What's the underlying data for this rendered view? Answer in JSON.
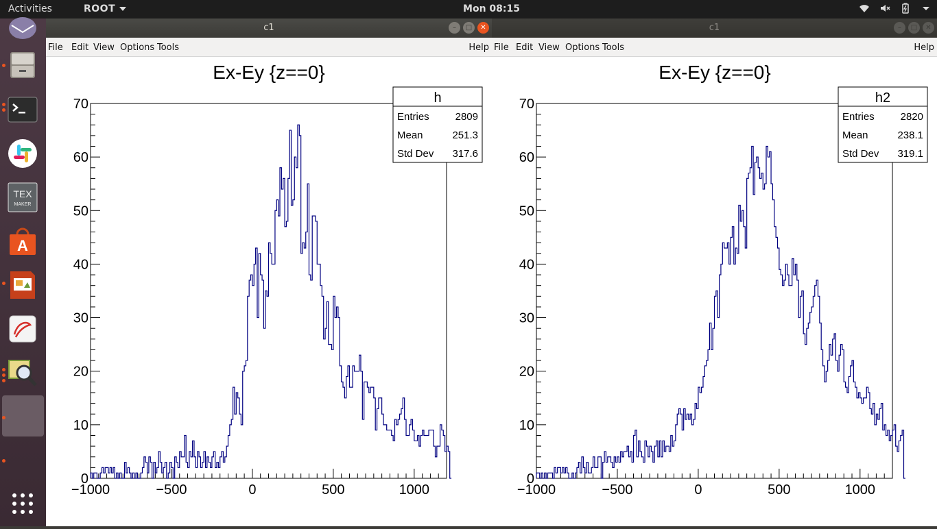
{
  "topbar": {
    "activities": "Activities",
    "app_menu": "ROOT",
    "clock": "Mon 08:15"
  },
  "dock": {
    "items": [
      "mail",
      "files",
      "terminal",
      "slack",
      "texmaker",
      "software-center",
      "impress",
      "evince",
      "image-viewer",
      "blank"
    ],
    "show_apps": "show-applications"
  },
  "windows": [
    {
      "title": "c1",
      "menu": {
        "file": "File",
        "edit": "Edit",
        "view": "View",
        "options": "Options",
        "tools": "Tools",
        "help": "Help"
      },
      "plot_title": "Ex-Ey {z==0}",
      "stats": {
        "name": "h",
        "entries_label": "Entries",
        "entries": "2809",
        "mean_label": "Mean",
        "mean": "251.3",
        "std_label": "Std Dev",
        "std": "317.6"
      }
    },
    {
      "title": "c1",
      "menu": {
        "file": "File",
        "edit": "Edit",
        "view": "View",
        "options": "Options",
        "tools": "Tools",
        "help": "Help"
      },
      "plot_title": "Ex-Ey {z==0}",
      "stats": {
        "name": "h2",
        "entries_label": "Entries",
        "entries": "2820",
        "mean_label": "Mean",
        "mean": "238.1",
        "std_label": "Std Dev",
        "std": "319.1"
      }
    }
  ],
  "colors": {
    "histogram_line": "#000080",
    "accent": "#e95420"
  },
  "chart_data": [
    {
      "type": "bar",
      "title": "Ex-Ey {z==0}",
      "xlim": [
        -1000,
        1200
      ],
      "ylim": [
        0,
        70
      ],
      "xticks": [
        "-1000",
        "-500",
        "0",
        "500",
        "1000"
      ],
      "yticks": [
        "0",
        "10",
        "20",
        "30",
        "40",
        "50",
        "60",
        "70"
      ],
      "bin_start": -1000,
      "bin_width": 10,
      "values": [
        1,
        0,
        1,
        1,
        0,
        0,
        1,
        2,
        1,
        2,
        2,
        1,
        2,
        1,
        2,
        0,
        1,
        0,
        1,
        0,
        0,
        3,
        1,
        2,
        1,
        0,
        1,
        0,
        1,
        0,
        0,
        1,
        2,
        4,
        3,
        1,
        4,
        3,
        0,
        3,
        1,
        2,
        5,
        3,
        1,
        2,
        3,
        0,
        1,
        3,
        2,
        0,
        4,
        3,
        2,
        5,
        4,
        4,
        8,
        3,
        2,
        5,
        4,
        7,
        4,
        2,
        5,
        4,
        2,
        3,
        5,
        2,
        4,
        3,
        2,
        4,
        5,
        2,
        3,
        2,
        4,
        5,
        3,
        4,
        6,
        8,
        10,
        11,
        17,
        12,
        16,
        15,
        12,
        10,
        20,
        21,
        22,
        34,
        37,
        38,
        36,
        40,
        43,
        30,
        42,
        38,
        37,
        28,
        35,
        34,
        44,
        42,
        40,
        40,
        50,
        52,
        49,
        58,
        54,
        56,
        47,
        48,
        56,
        65,
        51,
        52,
        60,
        58,
        66,
        64,
        42,
        44,
        43,
        46,
        55,
        38,
        37,
        49,
        49,
        48,
        40,
        40,
        36,
        34,
        26,
        28,
        33,
        25,
        25,
        24,
        34,
        30,
        32,
        30,
        21,
        18,
        17,
        15,
        19,
        21,
        17,
        17,
        21,
        20,
        20,
        20,
        23,
        20,
        11,
        18,
        18,
        17,
        16,
        17,
        17,
        15,
        9,
        13,
        15,
        15,
        12,
        10,
        10,
        9,
        9,
        9,
        8,
        7,
        11,
        10,
        11,
        12,
        13,
        15,
        11,
        8,
        8,
        10,
        11,
        9,
        7,
        7,
        8,
        6,
        8,
        9,
        8,
        8,
        8,
        9,
        9,
        9,
        6,
        4,
        6,
        6,
        10,
        9,
        8,
        5,
        6,
        5,
        0
      ]
    },
    {
      "type": "bar",
      "title": "Ex-Ey {z==0}",
      "xlim": [
        -1000,
        1200
      ],
      "ylim": [
        0,
        70
      ],
      "xticks": [
        "-1000",
        "-500",
        "0",
        "500",
        "1000"
      ],
      "yticks": [
        "0",
        "10",
        "20",
        "30",
        "40",
        "50",
        "60",
        "70"
      ],
      "bin_start": -1000,
      "bin_width": 10,
      "values": [
        1,
        1,
        0,
        1,
        0,
        1,
        0,
        1,
        1,
        1,
        0,
        2,
        1,
        2,
        2,
        1,
        2,
        1,
        2,
        1,
        0,
        0,
        1,
        0,
        1,
        2,
        3,
        1,
        4,
        2,
        1,
        3,
        1,
        1,
        2,
        4,
        2,
        2,
        4,
        4,
        0,
        3,
        5,
        3,
        4,
        4,
        3,
        2,
        4,
        3,
        4,
        3,
        5,
        4,
        5,
        5,
        6,
        4,
        5,
        3,
        8,
        9,
        4,
        7,
        5,
        4,
        3,
        7,
        6,
        4,
        6,
        5,
        3,
        6,
        7,
        4,
        7,
        4,
        7,
        5,
        6,
        6,
        5,
        8,
        6,
        7,
        10,
        12,
        13,
        12,
        9,
        13,
        11,
        12,
        11,
        12,
        10,
        11,
        14,
        13,
        17,
        16,
        17,
        19,
        21,
        22,
        24,
        29,
        24,
        28,
        34,
        35,
        30,
        38,
        40,
        44,
        43,
        43,
        44,
        40,
        45,
        47,
        40,
        43,
        42,
        51,
        48,
        50,
        47,
        43,
        56,
        57,
        58,
        62,
        53,
        59,
        60,
        58,
        56,
        57,
        54,
        55,
        62,
        60,
        61,
        55,
        52,
        47,
        45,
        43,
        39,
        38,
        36,
        37,
        40,
        38,
        36,
        36,
        41,
        38,
        40,
        37,
        30,
        34,
        35,
        27,
        25,
        28,
        29,
        31,
        32,
        34,
        36,
        37,
        34,
        29,
        24,
        21,
        18,
        20,
        22,
        25,
        23,
        26,
        27,
        22,
        20,
        23,
        25,
        24,
        18,
        17,
        16,
        19,
        21,
        22,
        18,
        17,
        15,
        16,
        15,
        14,
        15,
        15,
        17,
        16,
        13,
        12,
        14,
        10,
        12,
        11,
        13,
        14,
        9,
        10,
        8,
        9,
        7,
        8,
        9,
        10,
        6,
        5,
        7,
        8,
        9,
        0
      ]
    }
  ]
}
